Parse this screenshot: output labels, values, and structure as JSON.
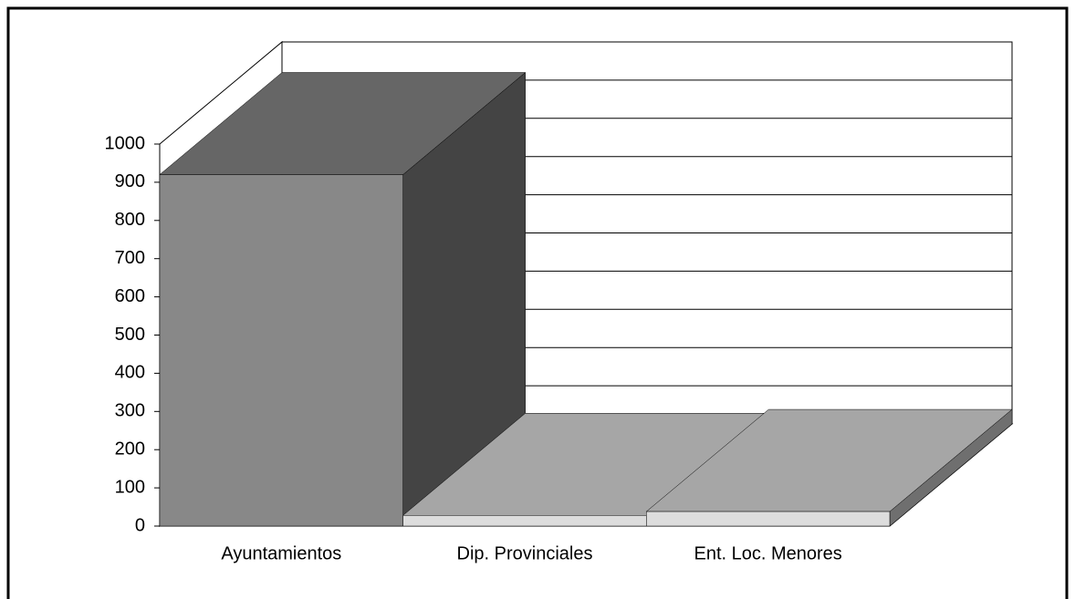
{
  "chart_data": {
    "type": "bar3d",
    "categories": [
      "Ayuntamientos",
      "Dip. Provinciales",
      "Ent. Loc. Menores"
    ],
    "values": [
      920,
      28,
      38
    ],
    "colors": [
      "#888888",
      "#dddddd",
      "#dddddd"
    ],
    "ylim": [
      0,
      1000
    ],
    "yticks": [
      0,
      100,
      200,
      300,
      400,
      500,
      600,
      700,
      800,
      900,
      1000
    ],
    "grid": true
  }
}
